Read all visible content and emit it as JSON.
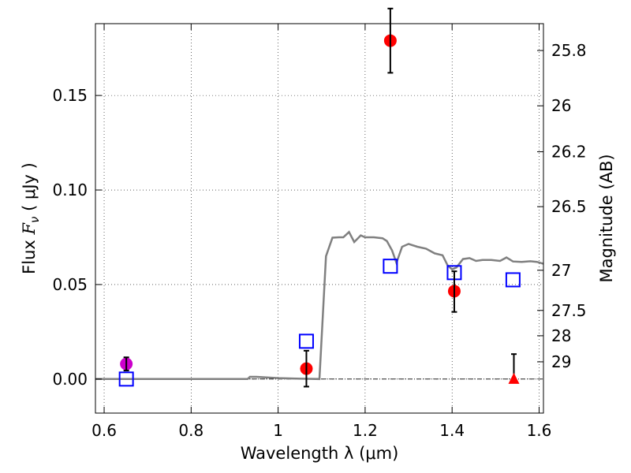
{
  "chart_data": {
    "type": "scatter",
    "xlabel": "Wavelength  λ (μm)",
    "ylabel_prefix": "Flux  ",
    "ylabel_symbol": "F",
    "ylabel_subscript": "ν",
    "ylabel_suffix": "  ( μJy )",
    "y2label": "Magnitude (AB)",
    "xlim": [
      0.58,
      1.61
    ],
    "ylim": [
      -0.018,
      0.188
    ],
    "grid": true,
    "x_ticks": [
      {
        "value": 0.6,
        "label": "0.6"
      },
      {
        "value": 0.8,
        "label": "0.8"
      },
      {
        "value": 1.0,
        "label": "1"
      },
      {
        "value": 1.2,
        "label": "1.2"
      },
      {
        "value": 1.4,
        "label": "1.4"
      },
      {
        "value": 1.6,
        "label": "1.6"
      }
    ],
    "y_ticks": [
      {
        "value": 0.0,
        "label": "0.00"
      },
      {
        "value": 0.05,
        "label": "0.05"
      },
      {
        "value": 0.1,
        "label": "0.10"
      },
      {
        "value": 0.15,
        "label": "0.15"
      }
    ],
    "y2_ticks": [
      {
        "value": 25.8,
        "label": "25.8"
      },
      {
        "value": 26.0,
        "label": "26"
      },
      {
        "value": 26.2,
        "label": "26.2"
      },
      {
        "value": 26.5,
        "label": "26.5"
      },
      {
        "value": 27.0,
        "label": "27"
      },
      {
        "value": 27.5,
        "label": "27.5"
      },
      {
        "value": 28.0,
        "label": "28"
      },
      {
        "value": 29.0,
        "label": "29"
      }
    ],
    "series": [
      {
        "kind": "line",
        "color": "#808080",
        "x": [
          0.58,
          0.93,
          0.935,
          0.95,
          1.0,
          1.05,
          1.095,
          1.11,
          1.125,
          1.14,
          1.15,
          1.163,
          1.175,
          1.19,
          1.2,
          1.22,
          1.24,
          1.25,
          1.262,
          1.272,
          1.285,
          1.3,
          1.32,
          1.34,
          1.36,
          1.378,
          1.39,
          1.4,
          1.41,
          1.425,
          1.44,
          1.455,
          1.47,
          1.49,
          1.51,
          1.525,
          1.54,
          1.56,
          1.58,
          1.595,
          1.61
        ],
        "y": [
          0.0,
          0.0,
          0.0012,
          0.0012,
          0.0005,
          0.0002,
          0.0,
          0.065,
          0.0748,
          0.075,
          0.075,
          0.0778,
          0.0725,
          0.076,
          0.075,
          0.075,
          0.0745,
          0.073,
          0.068,
          0.0615,
          0.07,
          0.0715,
          0.07,
          0.069,
          0.0665,
          0.0655,
          0.06,
          0.058,
          0.059,
          0.0635,
          0.064,
          0.0625,
          0.063,
          0.063,
          0.0625,
          0.0643,
          0.0622,
          0.062,
          0.0623,
          0.062,
          0.061
        ]
      },
      {
        "kind": "squares",
        "color": "#0000ff",
        "x": [
          0.651,
          1.065,
          1.258,
          1.405,
          1.54
        ],
        "y": [
          0.0,
          0.02,
          0.0597,
          0.0563,
          0.0525
        ]
      },
      {
        "kind": "circles",
        "color": "#ff0000",
        "x": [
          1.065,
          1.258,
          1.405
        ],
        "y": [
          0.0055,
          0.179,
          0.0465
        ],
        "yerr_low": [
          0.0095,
          0.017,
          0.011
        ],
        "yerr_high": [
          0.0095,
          0.017,
          0.0105
        ]
      },
      {
        "kind": "circles",
        "color": "#cc00cc",
        "x": [
          0.651
        ],
        "y": [
          0.008
        ],
        "yerr_low": [
          0.0035
        ],
        "yerr_high": [
          0.0035
        ]
      },
      {
        "kind": "triangles",
        "color": "#ff0000",
        "x": [
          1.542
        ],
        "y": [
          0.0
        ],
        "err_to": [
          0.0132
        ]
      }
    ],
    "zero_line": {
      "y": 0.0
    }
  }
}
